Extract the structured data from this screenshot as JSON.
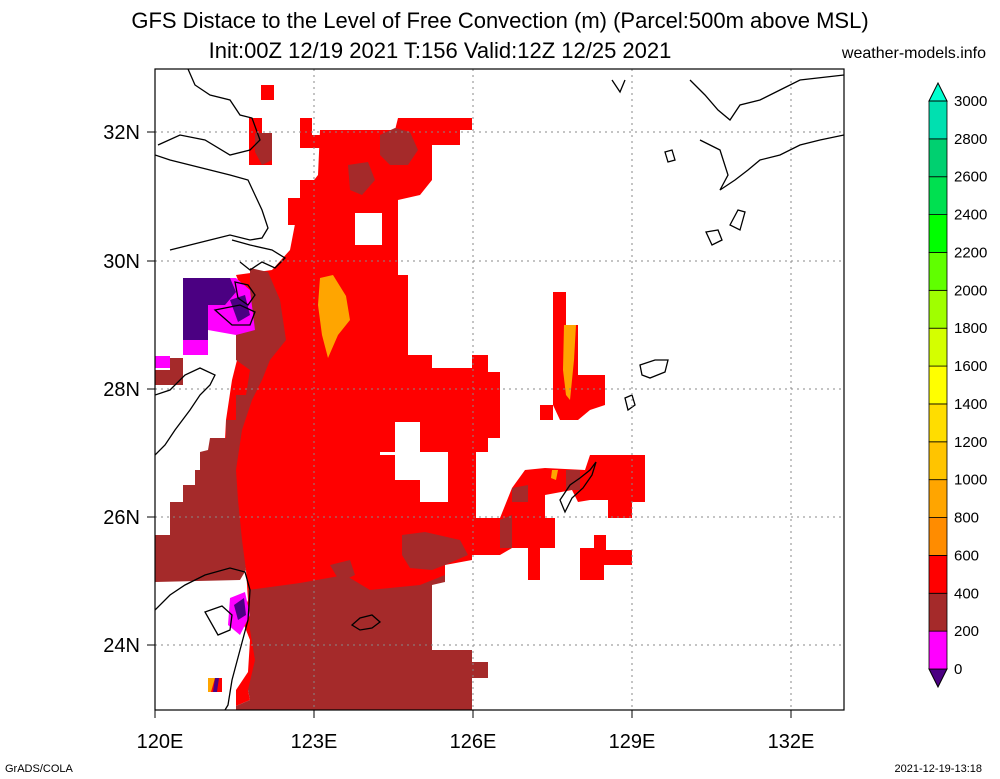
{
  "header": {
    "title": "GFS Distace to the Level of Free Convection (m) (Parcel:500m above MSL)",
    "subtitle": "Init:00Z 12/19 2021 T:156 Valid:12Z 12/25 2021",
    "site": "weather-models.info"
  },
  "footer": {
    "software": "GrADS/COLA",
    "timestamp": "2021-12-19-13:18"
  },
  "map": {
    "lon_range": [
      120,
      133
    ],
    "lat_range": [
      23,
      33
    ],
    "x_ticks": [
      "120E",
      "123E",
      "126E",
      "129E",
      "132E"
    ],
    "y_ticks": [
      "24N",
      "26N",
      "28N",
      "30N",
      "32N"
    ]
  },
  "legend": {
    "labels": [
      "0",
      "200",
      "400",
      "600",
      "800",
      "1000",
      "1200",
      "1400",
      "1600",
      "1800",
      "2000",
      "2200",
      "2400",
      "2600",
      "2800",
      "3000"
    ],
    "colors": [
      "#4b0082",
      "#ff00ff",
      "#a52a2a",
      "#ff0000",
      "#ff8c00",
      "#ffa500",
      "#ffc400",
      "#ffdd00",
      "#ffff00",
      "#d4ff00",
      "#a0ff00",
      "#60ff00",
      "#00ff00",
      "#00e050",
      "#00d070",
      "#00e0b0",
      "#00ffd0"
    ]
  }
}
